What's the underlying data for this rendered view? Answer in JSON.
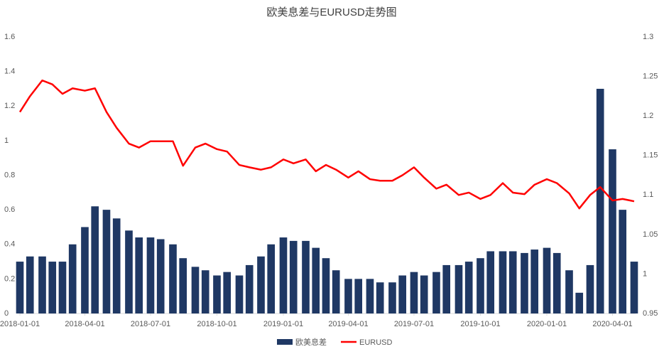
{
  "chart_data": {
    "type": "combo",
    "title": "欧美息差与EURUSD走势图",
    "x": [
      "2018-01-01",
      "2018-01-15",
      "2018-02-01",
      "2018-02-15",
      "2018-03-01",
      "2018-03-15",
      "2018-04-01",
      "2018-04-15",
      "2018-05-01",
      "2018-05-15",
      "2018-06-01",
      "2018-06-15",
      "2018-07-01",
      "2018-07-15",
      "2018-08-01",
      "2018-08-15",
      "2018-09-01",
      "2018-09-15",
      "2018-10-01",
      "2018-10-15",
      "2018-11-01",
      "2018-11-15",
      "2018-12-01",
      "2018-12-15",
      "2019-01-01",
      "2019-01-15",
      "2019-02-01",
      "2019-02-15",
      "2019-03-01",
      "2019-03-15",
      "2019-04-01",
      "2019-04-15",
      "2019-05-01",
      "2019-05-15",
      "2019-06-01",
      "2019-06-15",
      "2019-07-01",
      "2019-07-15",
      "2019-08-01",
      "2019-08-15",
      "2019-09-01",
      "2019-09-15",
      "2019-10-01",
      "2019-10-15",
      "2019-11-01",
      "2019-11-15",
      "2019-12-01",
      "2019-12-15",
      "2020-01-01",
      "2020-01-15",
      "2020-02-01",
      "2020-02-15",
      "2020-03-01",
      "2020-03-15",
      "2020-04-01",
      "2020-04-15",
      "2020-05-01"
    ],
    "series": [
      {
        "name": "欧美息差",
        "type": "bar",
        "color": "#1f3864",
        "values": [
          0.3,
          0.33,
          0.33,
          0.3,
          0.3,
          0.4,
          0.5,
          0.62,
          0.6,
          0.55,
          0.48,
          0.44,
          0.44,
          0.43,
          0.4,
          0.32,
          0.27,
          0.25,
          0.22,
          0.24,
          0.22,
          0.28,
          0.33,
          0.4,
          0.44,
          0.42,
          0.42,
          0.38,
          0.32,
          0.25,
          0.2,
          0.2,
          0.2,
          0.18,
          0.18,
          0.22,
          0.24,
          0.22,
          0.24,
          0.28,
          0.28,
          0.3,
          0.32,
          0.36,
          0.36,
          0.36,
          0.35,
          0.37,
          0.38,
          0.35,
          0.25,
          0.12,
          0.28,
          1.3,
          0.95,
          0.6,
          0.3
        ]
      },
      {
        "name": "EURUSD",
        "type": "line",
        "axis": "y2",
        "color": "#ff0000",
        "values": [
          1.205,
          1.225,
          1.245,
          1.24,
          1.228,
          1.235,
          1.232,
          1.235,
          1.205,
          1.185,
          1.165,
          1.16,
          1.168,
          1.168,
          1.168,
          1.137,
          1.16,
          1.165,
          1.158,
          1.155,
          1.138,
          1.135,
          1.132,
          1.135,
          1.145,
          1.14,
          1.145,
          1.13,
          1.138,
          1.132,
          1.122,
          1.13,
          1.12,
          1.118,
          1.118,
          1.125,
          1.135,
          1.122,
          1.108,
          1.113,
          1.1,
          1.103,
          1.095,
          1.1,
          1.115,
          1.103,
          1.101,
          1.113,
          1.12,
          1.115,
          1.102,
          1.083,
          1.1,
          1.11,
          1.093,
          1.095,
          1.092
        ]
      }
    ],
    "xlim": [
      "2018-01-01",
      "2020-05-03"
    ],
    "xticks": [
      "2018-01-01",
      "2018-04-01",
      "2018-07-01",
      "2018-10-01",
      "2019-01-01",
      "2019-04-01",
      "2019-07-01",
      "2019-10-01",
      "2020-01-01",
      "2020-04-01"
    ],
    "ylim": [
      0,
      1.6
    ],
    "yticks": [
      0,
      0.2,
      0.4,
      0.6,
      0.8,
      1,
      1.2,
      1.4,
      1.6
    ],
    "y2lim": [
      0.95,
      1.3
    ],
    "y2ticks": [
      0.95,
      1,
      1.05,
      1.1,
      1.15,
      1.2,
      1.25,
      1.3
    ],
    "legend": "bottom"
  }
}
